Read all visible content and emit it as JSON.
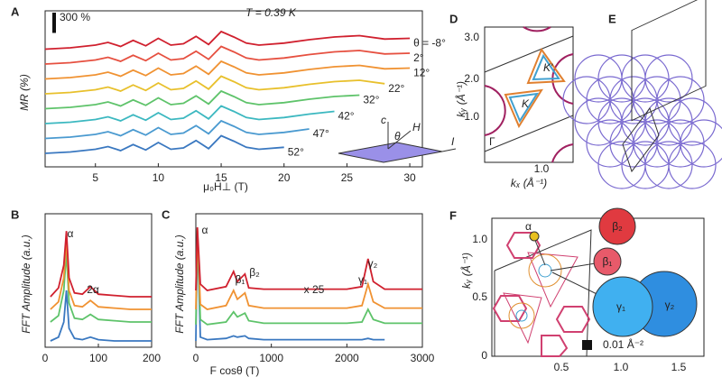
{
  "chart_data": [
    {
      "type": "line",
      "panel": "A",
      "title": "T = 0.39 K",
      "y_label": "MR (%)",
      "x_label": "μ₀H⊥ (T)",
      "scale_bar": {
        "value": 300,
        "label": "300 %"
      },
      "x": [
        1,
        3,
        5,
        6,
        7,
        8,
        9,
        10,
        11,
        12,
        13,
        14,
        15,
        16,
        17,
        18,
        20,
        22,
        24,
        26,
        28,
        30
      ],
      "xlim": [
        1,
        31
      ],
      "xticks": [
        5,
        10,
        15,
        20,
        25,
        30
      ],
      "ylim": [
        0,
        2200
      ],
      "series": [
        {
          "name": "52°",
          "color": "#3a78c0",
          "values": [
            200,
            220,
            260,
            300,
            240,
            330,
            250,
            360,
            260,
            280,
            390,
            270,
            460,
            380,
            290,
            260,
            290,
            null,
            null,
            null,
            null,
            null
          ]
        },
        {
          "name": "47°",
          "color": "#4a9ad0",
          "values": [
            420,
            440,
            480,
            520,
            460,
            550,
            470,
            580,
            480,
            500,
            610,
            490,
            680,
            600,
            510,
            480,
            510,
            560,
            null,
            null,
            null,
            null
          ]
        },
        {
          "name": "42°",
          "color": "#3cb8c0",
          "values": [
            640,
            660,
            700,
            740,
            680,
            770,
            690,
            800,
            700,
            720,
            830,
            710,
            900,
            820,
            730,
            700,
            730,
            780,
            820,
            null,
            null,
            null
          ]
        },
        {
          "name": "32°",
          "color": "#5ec36a",
          "values": [
            860,
            880,
            920,
            960,
            900,
            990,
            910,
            1020,
            920,
            940,
            1050,
            930,
            1120,
            1040,
            950,
            920,
            950,
            1000,
            1040,
            1060,
            null,
            null
          ]
        },
        {
          "name": "22°",
          "color": "#e8c02c",
          "values": [
            1080,
            1100,
            1140,
            1180,
            1120,
            1210,
            1130,
            1240,
            1140,
            1160,
            1270,
            1150,
            1340,
            1260,
            1170,
            1140,
            1170,
            1220,
            1260,
            1280,
            1230,
            null
          ]
        },
        {
          "name": "12°",
          "color": "#f09232",
          "values": [
            1300,
            1320,
            1360,
            1400,
            1340,
            1430,
            1350,
            1460,
            1360,
            1380,
            1490,
            1370,
            1560,
            1480,
            1390,
            1360,
            1390,
            1440,
            1480,
            1500,
            1450,
            1460
          ]
        },
        {
          "name": "2°",
          "color": "#e65040",
          "values": [
            1520,
            1540,
            1580,
            1620,
            1560,
            1650,
            1570,
            1680,
            1580,
            1600,
            1710,
            1590,
            1780,
            1700,
            1610,
            1580,
            1610,
            1660,
            1700,
            1720,
            1670,
            1680
          ]
        },
        {
          "name": "θ = -8°",
          "color": "#d0202e",
          "values": [
            1740,
            1760,
            1800,
            1840,
            1780,
            1870,
            1790,
            1900,
            1800,
            1820,
            1930,
            1810,
            2000,
            1920,
            1830,
            1800,
            1830,
            1880,
            1920,
            1940,
            1890,
            1900
          ]
        }
      ],
      "inset_labels": [
        "c",
        "θ",
        "H",
        "I"
      ]
    },
    {
      "type": "line",
      "panel": "B",
      "y_label": "FFT Amplitude (a.u.)",
      "x": [
        10,
        25,
        35,
        40,
        45,
        55,
        70,
        85,
        100,
        130,
        160,
        200
      ],
      "xlim": [
        0,
        200
      ],
      "xticks": [
        0,
        100,
        200
      ],
      "ylim": [
        0,
        100
      ],
      "series": [
        {
          "color": "#3a78c0",
          "values": [
            5,
            8,
            20,
            45,
            15,
            7,
            6,
            8,
            6,
            5,
            5,
            5
          ]
        },
        {
          "color": "#5ec36a",
          "values": [
            20,
            25,
            45,
            75,
            35,
            23,
            22,
            26,
            22,
            21,
            20,
            20
          ]
        },
        {
          "color": "#f09232",
          "values": [
            30,
            36,
            55,
            85,
            45,
            33,
            32,
            37,
            32,
            31,
            30,
            30
          ]
        },
        {
          "color": "#d0202e",
          "values": [
            40,
            47,
            65,
            92,
            55,
            43,
            42,
            48,
            42,
            41,
            40,
            40
          ]
        }
      ],
      "annotations": [
        "α",
        "2α"
      ]
    },
    {
      "type": "line",
      "panel": "C",
      "y_label": "FFT Amplitude (a.u.)",
      "x_label": "F cosθ (T)",
      "x": [
        0,
        20,
        60,
        150,
        400,
        500,
        550,
        650,
        700,
        900,
        1200,
        1600,
        2000,
        2200,
        2280,
        2350,
        2500,
        3000
      ],
      "xlim": [
        0,
        3000
      ],
      "xticks": [
        0,
        1000,
        2000,
        3000
      ],
      "ylim": [
        0,
        100
      ],
      "series": [
        {
          "color": "#3a78c0",
          "values": [
            5,
            90,
            8,
            6,
            7,
            9,
            8,
            9,
            7,
            6,
            6,
            6,
            6,
            6,
            7,
            6,
            6,
            null
          ]
        },
        {
          "color": "#5ec36a",
          "values": [
            18,
            92,
            22,
            18,
            20,
            28,
            24,
            27,
            21,
            19,
            19,
            19,
            19,
            20,
            30,
            22,
            19,
            19
          ]
        },
        {
          "color": "#f09232",
          "values": [
            30,
            94,
            34,
            30,
            33,
            45,
            38,
            43,
            33,
            31,
            31,
            31,
            31,
            33,
            50,
            36,
            31,
            31
          ]
        },
        {
          "color": "#d0202e",
          "values": [
            45,
            95,
            50,
            45,
            48,
            60,
            52,
            58,
            47,
            46,
            46,
            46,
            46,
            48,
            70,
            52,
            46,
            46
          ]
        }
      ],
      "annotations": [
        "α",
        "β₁",
        "β₂",
        "x 25",
        "γ₁",
        "γ₂"
      ]
    }
  ],
  "diagrams": {
    "D": {
      "panel": "D",
      "y_label": "kᵧ (Å⁻¹)",
      "x_label": "kₓ (Å⁻¹)",
      "yticks": [
        "1.0",
        "2.0",
        "3.0"
      ],
      "xticks": [
        "1.0"
      ],
      "labels": [
        "K",
        "K'",
        "Γ"
      ]
    },
    "E": {
      "panel": "E"
    },
    "F": {
      "panel": "F",
      "y_label": "kᵧ (Å⁻¹)",
      "yticks": [
        "0",
        "0.5",
        "1.0"
      ],
      "xticks": [
        "0.5",
        "1.0",
        "1.5"
      ],
      "labels": [
        "α",
        "β₂",
        "β₁",
        "γ₁",
        "γ₂"
      ],
      "scale": "0.01 Å⁻²"
    }
  }
}
